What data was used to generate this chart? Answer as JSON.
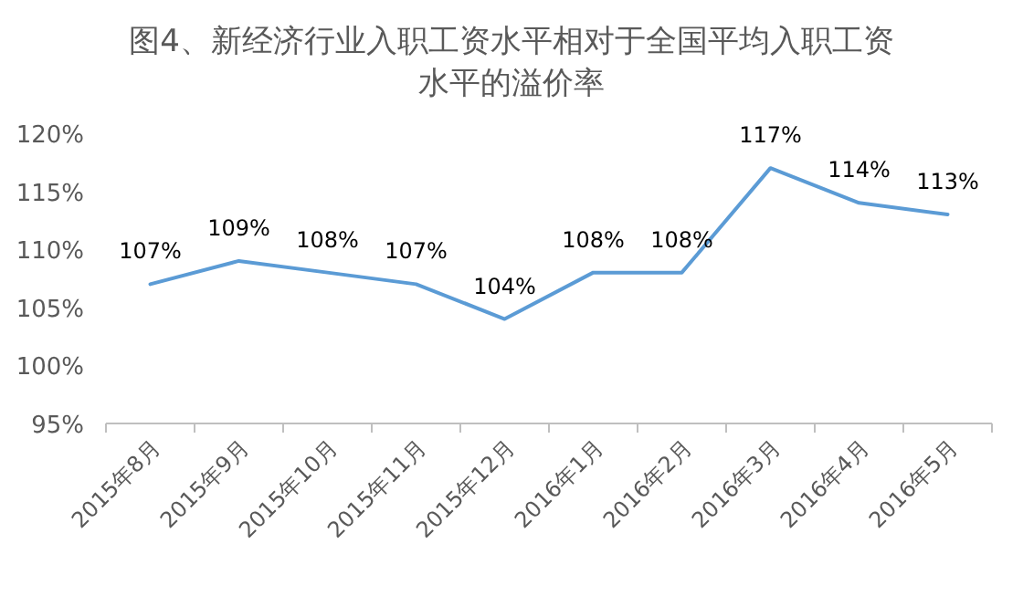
{
  "chart_data": {
    "type": "line",
    "title": "图4、新经济行业入职工资水平相对于全国平均入职工资水平的溢价率",
    "categories": [
      "2015年8月",
      "2015年9月",
      "2015年10月",
      "2015年11月",
      "2015年12月",
      "2016年1月",
      "2016年2月",
      "2016年3月",
      "2016年4月",
      "2016年5月"
    ],
    "series": [
      {
        "color": "#5b9bd5",
        "values": [
          107,
          109,
          108,
          107,
          104,
          108,
          108,
          117,
          114,
          113
        ],
        "value_labels": [
          "107%",
          "109%",
          "108%",
          "107%",
          "104%",
          "108%",
          "108%",
          "117%",
          "114%",
          "113%"
        ]
      }
    ],
    "ylim": [
      95,
      120
    ],
    "yticks": [
      {
        "value": 95,
        "label": "95%"
      },
      {
        "value": 100,
        "label": "100%"
      },
      {
        "value": 105,
        "label": "105%"
      },
      {
        "value": 110,
        "label": "110%"
      },
      {
        "value": 115,
        "label": "115%"
      },
      {
        "value": 120,
        "label": "120%"
      }
    ],
    "grid": false,
    "marker": "none",
    "line_style": "solid"
  }
}
